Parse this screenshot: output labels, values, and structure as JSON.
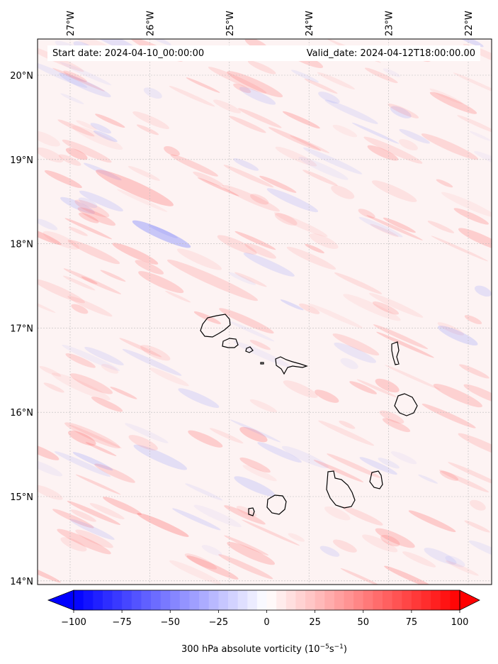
{
  "map": {
    "start_date_label": "Start date: 2024-04-10_00:00:00",
    "valid_date_label": "Valid_date: 2024-04-12T18:00:00.00",
    "lon_ticks": [
      {
        "lon": -27,
        "label": "27°W"
      },
      {
        "lon": -26,
        "label": "26°W"
      },
      {
        "lon": -25,
        "label": "25°W"
      },
      {
        "lon": -24,
        "label": "24°W"
      },
      {
        "lon": -23,
        "label": "23°W"
      },
      {
        "lon": -22,
        "label": "22°W"
      }
    ],
    "lat_ticks": [
      {
        "lat": 20,
        "label": "20°N"
      },
      {
        "lat": 19,
        "label": "19°N"
      },
      {
        "lat": 18,
        "label": "18°N"
      },
      {
        "lat": 17,
        "label": "17°N"
      },
      {
        "lat": 16,
        "label": "16°N"
      },
      {
        "lat": 15,
        "label": "15°N"
      },
      {
        "lat": 14,
        "label": "14°N"
      }
    ],
    "gridlines": true,
    "coastline_color": "#000000"
  },
  "colorbar": {
    "min": -100,
    "max": 100,
    "colormap": "bwr",
    "extend": "both",
    "ticks": [
      {
        "value": -100,
        "label": "−100"
      },
      {
        "value": -75,
        "label": "−75"
      },
      {
        "value": -50,
        "label": "−50"
      },
      {
        "value": -25,
        "label": "−25"
      },
      {
        "value": 0,
        "label": "0"
      },
      {
        "value": 25,
        "label": "25"
      },
      {
        "value": 50,
        "label": "50"
      },
      {
        "value": 75,
        "label": "75"
      },
      {
        "value": 100,
        "label": "100"
      }
    ],
    "label_main": "300 hPa absolute vorticity (10",
    "label_exp1": "−5",
    "label_mid": "s",
    "label_exp2": "−1",
    "label_end": ")"
  }
}
